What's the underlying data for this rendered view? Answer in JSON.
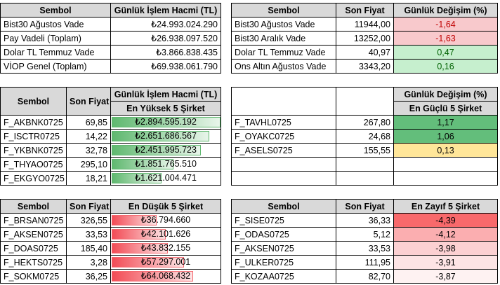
{
  "t1": {
    "headers": [
      "Sembol",
      "Günlük İşlem Hacmi (TL)"
    ],
    "rows": [
      [
        "Bist30 Ağustos Vade",
        "₺24.993.024.290"
      ],
      [
        "Pay Vadeli (Toplam)",
        "₺26.938.097.520"
      ],
      [
        "Dolar TL Temmuz Vade",
        "₺3.866.838.435"
      ],
      [
        "VİOP Genel (Toplam)",
        "₺69.938.061.790"
      ]
    ]
  },
  "t2": {
    "headers": [
      "Sembol",
      "Son Fiyat",
      "Günlük Değişim (%)"
    ],
    "rows": [
      [
        "Bist30 Ağustos Vade",
        "11944,00",
        "-1,64"
      ],
      [
        "Bist30 Aralık Vade",
        "13252,00",
        "-1,63"
      ],
      [
        "Dolar TL Temmuz Vade",
        "40,97",
        "0,47"
      ],
      [
        "Ons Altın Ağustos Vade",
        "3343,20",
        "0,16"
      ]
    ],
    "colors": [
      "#f8c9cc",
      "#f8c9cc",
      "#c6efce",
      "#c6efce"
    ]
  },
  "t3": {
    "headers": [
      "Sembol",
      "Son Fiyat",
      "Günlük İşlem Hacmi (TL)"
    ],
    "subheader": "En Yüksek 5 Şirket",
    "rows": [
      [
        "F_AKBNK0725",
        "69,85",
        "₺2.894.595.192"
      ],
      [
        "F_ISCTR0725",
        "14,22",
        "₺2.651.686.567"
      ],
      [
        "F_YKBNK0725",
        "32,78",
        "₺2.451.995.723"
      ],
      [
        "F_THYAO0725",
        "295,10",
        "₺1.851.765.510"
      ],
      [
        "F_EKGYO0725",
        "18,21",
        "₺1.621.004.471"
      ]
    ],
    "fill_pct": [
      98,
      88,
      80,
      55,
      44
    ]
  },
  "t4": {
    "headers": [
      "Günlük Değişim (%)"
    ],
    "subheader": "En Güçlü 5 Şirket",
    "rows": [
      [
        "F_TAVHL0725",
        "267,80",
        "1,17"
      ],
      [
        "F_OYAKC0725",
        "24,68",
        "1,06"
      ],
      [
        "F_ASELS0725",
        "155,55",
        "0,13"
      ],
      [
        "",
        "",
        ""
      ],
      [
        "",
        "",
        ""
      ]
    ],
    "colors": [
      "#63be7b",
      "#63be7b",
      "#ffe699",
      "#ffffff",
      "#ffffff"
    ]
  },
  "t5": {
    "headers": [
      "Sembol",
      "Son Fiyat",
      "En Düşük 5 Şirket"
    ],
    "rows": [
      [
        "F_BRSAN0725",
        "326,55",
        "₺36.794.660"
      ],
      [
        "F_AKSEN0725",
        "33,53",
        "₺42.101.626"
      ],
      [
        "F_DOAS0725",
        "185,40",
        "₺43.832.155"
      ],
      [
        "F_HEKTS0725",
        "3,28",
        "₺57.297.001"
      ],
      [
        "F_SOKM0725",
        "36,25",
        "₺64.068.432"
      ]
    ],
    "fill_pct": [
      40,
      48,
      50,
      65,
      73
    ]
  },
  "t6": {
    "headers": [
      "Sembol",
      "Son Fiyat",
      "En Zayıf 5 Şirket"
    ],
    "rows": [
      [
        "F_SISE0725",
        "36,33",
        "-4,39"
      ],
      [
        "F_ODAS0725",
        "5,12",
        "-4,12"
      ],
      [
        "F_AKSEN0725",
        "33,53",
        "-3,98"
      ],
      [
        "F_ULKER0725",
        "111,95",
        "-3,91"
      ],
      [
        "F_KOZAA0725",
        "82,70",
        "-3,87"
      ]
    ],
    "colors": [
      "#f8696b",
      "#fbaeb0",
      "#fcd0d2",
      "#fde4e5",
      "#fef2f2"
    ]
  }
}
